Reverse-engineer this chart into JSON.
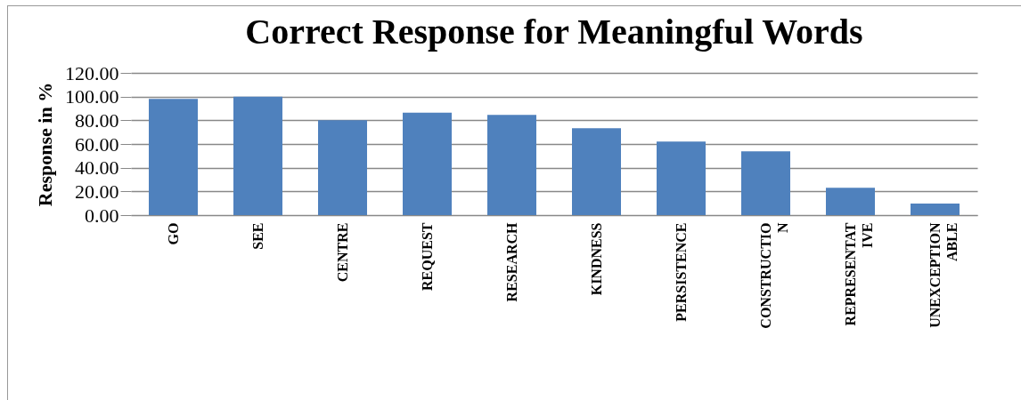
{
  "chart_data": {
    "type": "bar",
    "title": "Correct Response for Meaningful Words",
    "ylabel": "Response in %",
    "categories": [
      "GO",
      "SEE",
      "CENTRE",
      "REQUEST",
      "RESEARCH",
      "KINDNESS",
      "PERSISTENCE",
      "CONSTRUCTION",
      "REPRESENTATIVE",
      "UNEXCEPTIONABLE"
    ],
    "values": [
      98,
      100,
      80,
      86.4,
      84.5,
      73.4,
      62,
      53.8,
      23.1,
      9.8
    ],
    "color": "#4f81bd",
    "ylim": [
      0,
      120
    ],
    "yticks": [
      {
        "value": 0,
        "label": "0.00"
      },
      {
        "value": 20,
        "label": "20.00"
      },
      {
        "value": 40,
        "label": "40.00"
      },
      {
        "value": 60,
        "label": "60.00"
      },
      {
        "value": 80,
        "label": "80.00"
      },
      {
        "value": 100,
        "label": "100.00"
      },
      {
        "value": 120,
        "label": "120.00"
      }
    ],
    "grid": true
  }
}
